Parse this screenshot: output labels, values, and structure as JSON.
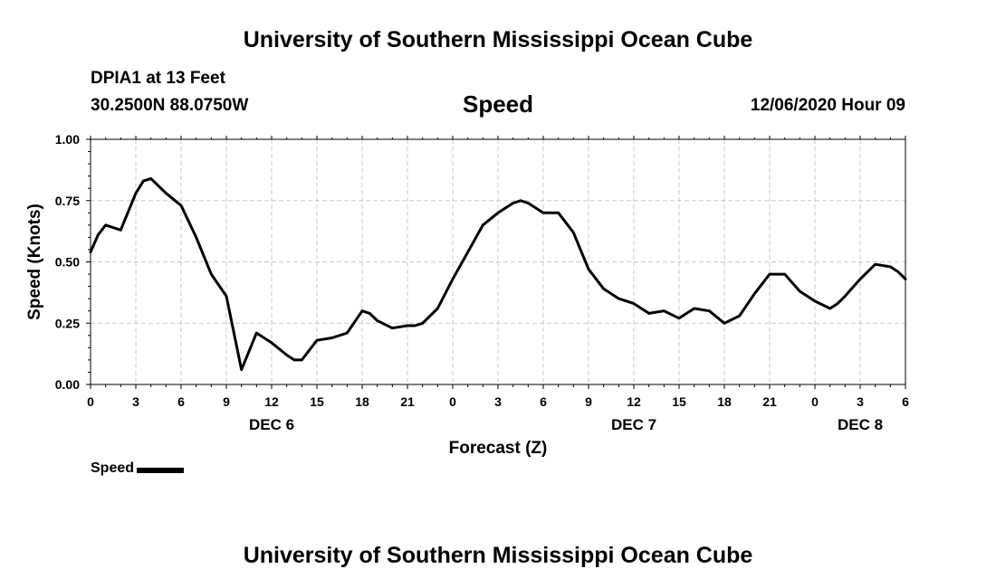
{
  "header": {
    "title": "University of Southern Mississippi Ocean Cube",
    "station": "DPIA1 at 13 Feet",
    "location": "30.2500N 88.0750W",
    "variable": "Speed",
    "valid_time": "12/06/2020 Hour 09"
  },
  "footer": {
    "title": "University of Southern Mississippi Ocean Cube"
  },
  "legend": {
    "label": "Speed",
    "color": "#000000"
  },
  "chart_data": {
    "type": "line",
    "title": "Speed",
    "xlabel": "Forecast (Z)",
    "ylabel": "Speed (Knots)",
    "xlim": [
      0,
      54
    ],
    "ylim": [
      0,
      1
    ],
    "grid": true,
    "legend_position": "bottom-left",
    "x_ticks": [
      0,
      3,
      6,
      9,
      12,
      15,
      18,
      21,
      24,
      27,
      30,
      33,
      36,
      39,
      42,
      45,
      48,
      51,
      54
    ],
    "x_tick_labels": [
      "0",
      "3",
      "6",
      "9",
      "12",
      "15",
      "18",
      "21",
      "0",
      "3",
      "6",
      "9",
      "12",
      "15",
      "18",
      "21",
      "0",
      "3",
      "6"
    ],
    "y_ticks": [
      0,
      0.25,
      0.5,
      0.75,
      1.0
    ],
    "y_tick_labels": [
      "0.00",
      "0.25",
      "0.50",
      "0.75",
      "1.00"
    ],
    "date_labels": [
      {
        "label": "DEC 6",
        "x": 12
      },
      {
        "label": "DEC 7",
        "x": 36
      },
      {
        "label": "DEC 8",
        "x": 51
      }
    ],
    "series": [
      {
        "name": "Speed",
        "color": "#000000",
        "x": [
          0,
          0.5,
          1,
          2,
          3,
          3.5,
          4,
          5,
          6,
          7,
          8,
          9,
          10,
          11,
          12,
          13,
          13.5,
          14,
          15,
          16,
          17,
          18,
          18.5,
          19,
          20,
          21,
          21.5,
          22,
          23,
          24,
          25,
          26,
          27,
          28,
          28.5,
          29,
          30,
          31,
          32,
          33,
          34,
          35,
          36,
          37,
          38,
          39,
          40,
          41,
          42,
          43,
          44,
          45,
          46,
          47,
          48,
          49,
          49.5,
          50,
          51,
          52,
          53,
          53.5,
          54
        ],
        "y": [
          0.54,
          0.61,
          0.65,
          0.63,
          0.78,
          0.83,
          0.84,
          0.78,
          0.73,
          0.6,
          0.45,
          0.36,
          0.06,
          0.21,
          0.17,
          0.12,
          0.1,
          0.1,
          0.18,
          0.19,
          0.21,
          0.3,
          0.29,
          0.26,
          0.23,
          0.24,
          0.24,
          0.25,
          0.31,
          0.43,
          0.54,
          0.65,
          0.7,
          0.74,
          0.75,
          0.74,
          0.7,
          0.7,
          0.62,
          0.47,
          0.39,
          0.35,
          0.33,
          0.29,
          0.3,
          0.27,
          0.31,
          0.3,
          0.25,
          0.28,
          0.37,
          0.45,
          0.45,
          0.38,
          0.34,
          0.31,
          0.33,
          0.36,
          0.43,
          0.49,
          0.48,
          0.46,
          0.43
        ]
      }
    ]
  }
}
